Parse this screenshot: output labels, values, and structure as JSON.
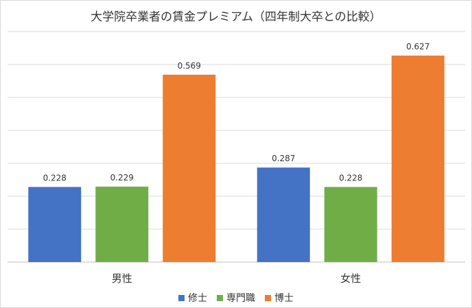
{
  "title": "大学院卒業者の賃金プレミアム（四年制大卒との比較）",
  "chart_data": {
    "type": "bar",
    "title": "大学院卒業者の賃金プレミアム（四年制大卒との比較）",
    "categories": [
      "男性",
      "女性"
    ],
    "series": [
      {
        "name": "修士",
        "values": [
          0.228,
          0.287
        ],
        "color": "#4472C4"
      },
      {
        "name": "専門職",
        "values": [
          0.229,
          0.228
        ],
        "color": "#70AD47"
      },
      {
        "name": "博士",
        "values": [
          0.569,
          0.627
        ],
        "color": "#ED7D31"
      }
    ],
    "data_labels": [
      [
        "0.228",
        "0.287"
      ],
      [
        "0.229",
        "0.228"
      ],
      [
        "0.569",
        "0.627"
      ]
    ],
    "ylim": [
      0,
      0.7
    ],
    "grid": true,
    "legend_position": "bottom"
  }
}
